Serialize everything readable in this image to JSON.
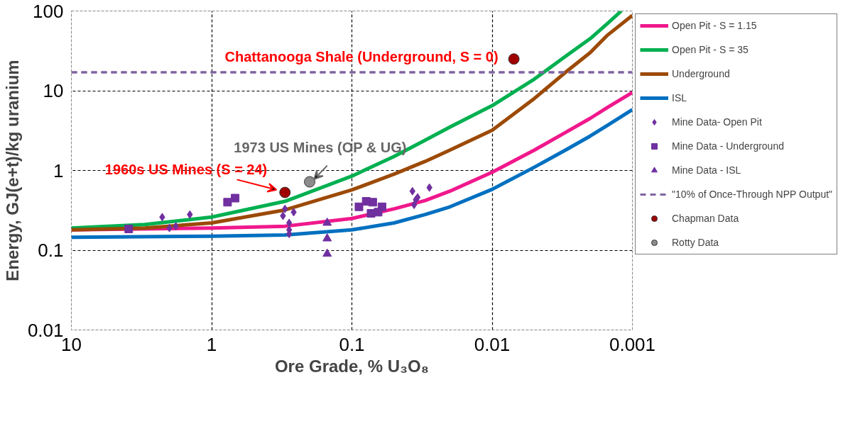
{
  "chart_data": {
    "type": "line",
    "xlabel": "Ore Grade, % U₃O₈",
    "ylabel": "Energy, GJ(e+t)/kg uranium",
    "log": "xy",
    "xlim": [
      10,
      0.001
    ],
    "xticks": [
      10,
      1,
      0.1,
      0.01,
      0.001
    ],
    "ylim": [
      0.01,
      100
    ],
    "yticks": [
      0.01,
      0.1,
      1,
      10,
      100
    ],
    "grid": true,
    "legend": "right",
    "series": [
      {
        "name": "Open Pit - S = 1.15",
        "color": "#f0188c",
        "x": [
          10,
          1,
          0.3,
          0.1,
          0.05,
          0.03,
          0.02,
          0.01,
          0.005,
          0.003,
          0.002,
          0.0015,
          0.001
        ],
        "values": [
          0.18,
          0.19,
          0.2,
          0.25,
          0.33,
          0.42,
          0.55,
          0.95,
          1.8,
          3.0,
          4.5,
          6.2,
          9.5
        ]
      },
      {
        "name": "Open Pit - S = 35",
        "color": "#00b050",
        "x": [
          10,
          3,
          1,
          0.3,
          0.1,
          0.05,
          0.03,
          0.02,
          0.01,
          0.005,
          0.003,
          0.002,
          0.0015,
          0.0012
        ],
        "values": [
          0.19,
          0.21,
          0.26,
          0.41,
          0.85,
          1.5,
          2.4,
          3.5,
          6.5,
          14,
          27,
          45,
          70,
          100
        ]
      },
      {
        "name": "Underground",
        "color": "#9c4a06",
        "x": [
          10,
          3,
          1,
          0.3,
          0.1,
          0.05,
          0.03,
          0.02,
          0.01,
          0.005,
          0.003,
          0.002,
          0.0015,
          0.001
        ],
        "values": [
          0.18,
          0.19,
          0.22,
          0.32,
          0.57,
          0.9,
          1.3,
          1.8,
          3.2,
          8,
          17,
          30,
          50,
          88
        ]
      },
      {
        "name": "ISL",
        "color": "#0070c0",
        "x": [
          10,
          1,
          0.3,
          0.1,
          0.05,
          0.03,
          0.02,
          0.01,
          0.005,
          0.003,
          0.002,
          0.0015,
          0.001
        ],
        "values": [
          0.145,
          0.15,
          0.155,
          0.18,
          0.22,
          0.28,
          0.35,
          0.58,
          1.1,
          1.8,
          2.7,
          3.7,
          5.8
        ]
      },
      {
        "name": "Mine Data- Open Pit",
        "type": "scatter",
        "marker": "diamond",
        "color": "#7030a0",
        "x": [
          2.25,
          2.0,
          1.8,
          1.43,
          0.3,
          0.26,
          0.31,
          0.28,
          0.28,
          0.28,
          0.037,
          0.034,
          0.036,
          0.028,
          0.035
        ],
        "values": [
          0.26,
          0.19,
          0.2,
          0.28,
          0.33,
          0.3,
          0.27,
          0.22,
          0.18,
          0.16,
          0.55,
          0.46,
          0.37,
          0.61,
          0.43
        ]
      },
      {
        "name": "Mine Data - Underground",
        "type": "scatter",
        "marker": "square",
        "color": "#7030a0",
        "x": [
          3.9,
          0.77,
          0.68,
          0.089,
          0.079,
          0.071,
          0.061,
          0.073,
          0.065
        ],
        "values": [
          0.185,
          0.4,
          0.45,
          0.35,
          0.41,
          0.4,
          0.35,
          0.29,
          0.3
        ]
      },
      {
        "name": "Mine Data - ISL",
        "type": "scatter",
        "marker": "triangle",
        "color": "#7030a0",
        "x": [
          0.15,
          0.15,
          0.15
        ],
        "values": [
          0.22,
          0.14,
          0.09
        ]
      },
      {
        "name": "Chapman Data",
        "type": "scatter",
        "marker": "circle",
        "color": "#a00000",
        "x": [
          0.3,
          0.007
        ],
        "values": [
          0.53,
          25
        ]
      },
      {
        "name": "Rotty Data",
        "type": "scatter",
        "marker": "circle",
        "color": "#8c8c8c",
        "x": [
          0.2
        ],
        "values": [
          0.72
        ]
      }
    ],
    "ref_lines": [
      {
        "axis": "y",
        "value": 17,
        "label": "\"10% of Once-Through NPP Output\"",
        "color": "#8064a2",
        "line_style": "dashed"
      }
    ],
    "annotations": [
      {
        "text": "Chattanooga Shale (Underground, S = 0)",
        "x": 0.007,
        "y": 25
      },
      {
        "text": "1960s US Mines (S = 24)",
        "x": 0.3,
        "y": 0.53
      },
      {
        "text": "1973 US Mines (OP & UG)",
        "x": 0.2,
        "y": 0.72
      }
    ]
  }
}
